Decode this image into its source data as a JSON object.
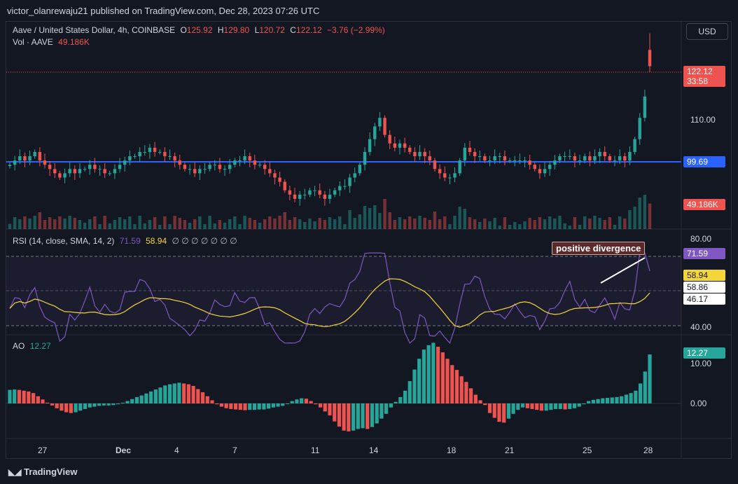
{
  "header": {
    "published": "victor_olanrewaju21 published on TradingView.com, Dec 28, 2023 07:26 UTC"
  },
  "currency_button": "USD",
  "legend": {
    "symbol": "Aave / United States Dollar, 4h, COINBASE",
    "o_label": "O",
    "o": "125.92",
    "h_label": "H",
    "h": "129.80",
    "l_label": "L",
    "l": "120.72",
    "c_label": "C",
    "c": "122.12",
    "change": "−3.76 (−2.99%)",
    "vol_label": "Vol · AAVE",
    "vol": "49.186K"
  },
  "rsi_legend": {
    "label": "RSI (14, close, SMA, 14, 2)",
    "rsi": "71.59",
    "sma": "58.94",
    "rest": "∅ ∅ ∅ ∅ ∅ ∅ ∅"
  },
  "ao_legend": {
    "label": "AO",
    "value": "12.27"
  },
  "price_axis": {
    "tick_110": "110.00",
    "price_tag": "122.12",
    "countdown": "33:58",
    "line_tag": "99.69",
    "vol_tag": "49.186K"
  },
  "rsi_axis": {
    "tick_80": "80.00",
    "tick_40": "40.00",
    "rsi_tag": "71.59",
    "sma_tag": "58.94",
    "t1": "58.86",
    "t2": "46.17"
  },
  "ao_axis": {
    "tick_10": "10.00",
    "tick_0": "0.00",
    "ao_tag": "12.27"
  },
  "time_axis": [
    "27",
    "Dec",
    "4",
    "7",
    "11",
    "14",
    "18",
    "21",
    "25",
    "28"
  ],
  "annotation": "positive divergence",
  "footer": "TradingView",
  "colors": {
    "bg": "#131722",
    "up": "#26a69a",
    "down": "#ef5350",
    "rsi": "#7e57c2",
    "sma": "#f5d63a",
    "line": "#2962ff"
  },
  "chart_data": [
    {
      "type": "candlestick",
      "title": "Aave / United States Dollar, 4h, COINBASE",
      "x_ticks": [
        "27",
        "Dec",
        "4",
        "7",
        "11",
        "14",
        "18",
        "21",
        "25",
        "28"
      ],
      "y_ticks": [
        110.0
      ],
      "horizontal_line": 99.69,
      "last_price": 122.12,
      "ohlc_last": {
        "open": 125.92,
        "high": 129.8,
        "low": 120.72,
        "close": 122.12
      },
      "close_series": [
        99,
        100,
        101,
        100,
        101,
        102,
        100,
        99,
        98,
        97,
        96,
        97,
        98,
        97,
        98,
        98,
        99,
        98,
        98,
        97,
        97,
        98,
        99,
        100,
        101,
        101,
        102,
        102,
        103,
        102,
        102,
        101,
        101,
        100,
        99,
        98,
        98,
        97,
        98,
        98,
        99,
        99,
        98,
        98,
        99,
        100,
        100,
        101,
        100,
        99,
        99,
        98,
        97,
        96,
        95,
        93,
        92,
        91,
        92,
        92,
        93,
        93,
        92,
        91,
        92,
        93,
        94,
        94,
        96,
        97,
        99,
        102,
        105,
        108,
        110,
        106,
        104,
        103,
        104,
        103,
        102,
        101,
        102,
        101,
        100,
        98,
        97,
        96,
        96,
        97,
        100,
        103,
        102,
        101,
        101,
        100,
        100,
        101,
        101,
        100,
        100,
        100,
        100,
        100,
        99,
        98,
        97,
        98,
        99,
        100,
        101,
        101,
        101,
        100,
        100,
        101,
        100,
        101,
        102,
        101,
        100,
        100,
        101,
        100,
        102,
        105,
        110,
        115,
        122.12
      ]
    },
    {
      "type": "line",
      "title": "RSI (14, close, SMA, 14, 2)",
      "y_ticks": [
        80.0,
        40.0
      ],
      "series": [
        {
          "name": "RSI",
          "last": 71.59
        },
        {
          "name": "SMA",
          "last": 58.94
        }
      ]
    },
    {
      "type": "bar",
      "title": "AO",
      "y_ticks": [
        10.0,
        0.0
      ],
      "last": 12.27,
      "values": [
        3.4,
        3.5,
        3.4,
        3.2,
        3.0,
        2.6,
        1.8,
        1.0,
        0.2,
        -0.5,
        -1.2,
        -1.8,
        -2.2,
        -2.4,
        -2.2,
        -1.8,
        -1.4,
        -1.0,
        -0.8,
        -0.6,
        -0.5,
        -0.5,
        -0.4,
        -0.2,
        0.2,
        0.6,
        1.1,
        1.6,
        2.0,
        2.5,
        3.0,
        3.5,
        4.0,
        4.5,
        4.8,
        5.0,
        5.2,
        5.0,
        4.8,
        4.4,
        3.6,
        2.8,
        1.8,
        0.8,
        -0.2,
        -0.8,
        -1.2,
        -1.4,
        -1.5,
        -1.6,
        -1.7,
        -1.6,
        -1.6,
        -1.5,
        -1.5,
        -1.3,
        -1.0,
        -0.8,
        -0.6,
        0.0,
        0.6,
        1.0,
        1.3,
        1.2,
        0.6,
        -0.2,
        -1.0,
        -2.0,
        -3.0,
        -4.5,
        -5.8,
        -6.8,
        -7.0,
        -6.8,
        -6.4,
        -6.2,
        -6.4,
        -5.9,
        -5.0,
        -3.8,
        -2.6,
        -1.0,
        0.4,
        1.6,
        3.2,
        5.6,
        8.5,
        11.2,
        13.5,
        14.6,
        15.2,
        14.2,
        12.8,
        11.2,
        9.6,
        8.4,
        6.8,
        5.4,
        3.8,
        2.2,
        0.8,
        -0.4,
        -2.4,
        -3.6,
        -4.6,
        -4.8,
        -3.8,
        -2.6,
        -1.6,
        -1.0,
        -1.2,
        -1.4,
        -1.6,
        -1.8,
        -1.8,
        -1.6,
        -1.4,
        -1.4,
        -1.5,
        -1.4,
        -1.2,
        -0.8,
        -0.2,
        0.6,
        0.9,
        1.1,
        1.3,
        1.4,
        1.5,
        1.6,
        1.8,
        2.2,
        2.6,
        3.2,
        5.0,
        8.0,
        12.27
      ]
    }
  ]
}
